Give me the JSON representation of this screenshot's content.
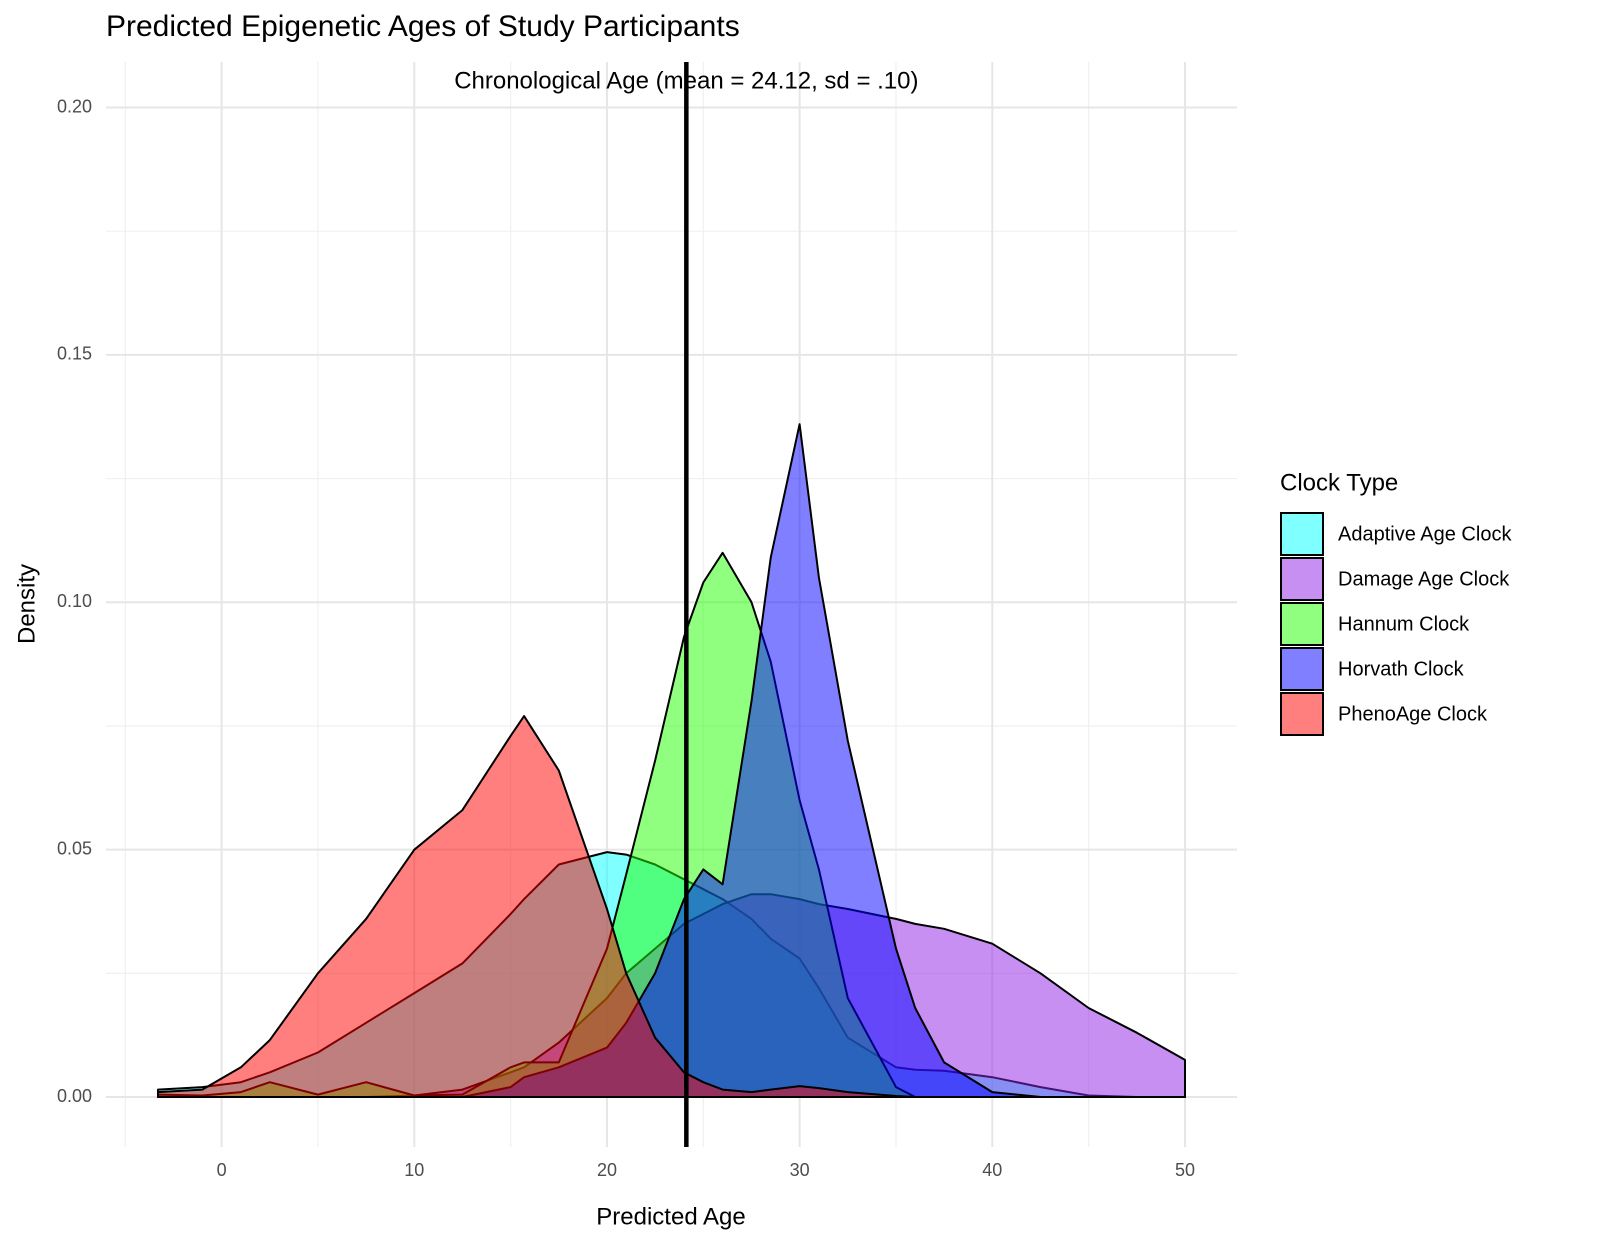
{
  "chart_data": {
    "type": "density",
    "title": "Predicted Epigenetic Ages of Study Participants",
    "xlabel": "Predicted Age",
    "ylabel": "Density",
    "annotation": "Chronological Age (mean = 24.12, sd = .10)",
    "vline": 24.12,
    "legend_title": "Clock Type",
    "legend_position": "right",
    "grid": true,
    "xlim": [
      -6.0,
      52.7
    ],
    "ylim": [
      -0.0101,
      0.2092
    ],
    "xticks": [
      0,
      10,
      20,
      30,
      40,
      50
    ],
    "yticks": [
      {
        "value": 0,
        "label": "0.00"
      },
      {
        "value": 0.05,
        "label": "0.05"
      },
      {
        "value": 0.1,
        "label": "0.10"
      },
      {
        "value": 0.15,
        "label": "0.15"
      },
      {
        "value": 0.2,
        "label": "0.20"
      }
    ],
    "x": [
      -3.3,
      -1,
      1,
      2.5,
      5,
      7.5,
      10,
      12.5,
      15,
      15.7,
      17.5,
      20,
      21,
      22.5,
      24,
      25,
      26,
      27.5,
      28.5,
      30,
      31,
      32.5,
      35,
      36,
      37.5,
      40,
      42.5,
      45,
      47.5,
      50
    ],
    "series": [
      {
        "name": "Adaptive Age Clock",
        "color": "#00ffff",
        "values": [
          0.0015,
          0.002,
          0.003,
          0.005,
          0.009,
          0.015,
          0.021,
          0.027,
          0.037,
          0.04,
          0.047,
          0.0495,
          0.049,
          0.047,
          0.044,
          0.042,
          0.04,
          0.036,
          0.032,
          0.028,
          0.022,
          0.012,
          0.006,
          0.0055,
          0.0053,
          0.004,
          0.002,
          0.0003,
          0,
          0
        ]
      },
      {
        "name": "Damage Age Clock",
        "color": "#8f1fe6",
        "values": [
          0,
          0,
          0,
          0,
          0,
          0,
          0.0003,
          0.0015,
          0.005,
          0.006,
          0.011,
          0.02,
          0.025,
          0.03,
          0.035,
          0.037,
          0.039,
          0.041,
          0.041,
          0.04,
          0.039,
          0.038,
          0.036,
          0.035,
          0.034,
          0.031,
          0.025,
          0.018,
          0.013,
          0.0075
        ]
      },
      {
        "name": "Hannum Clock",
        "color": "#22ff00",
        "values": [
          0.0005,
          0.0003,
          0.001,
          0.003,
          0.0005,
          0.003,
          0.0003,
          0.0005,
          0.006,
          0.007,
          0.007,
          0.03,
          0.045,
          0.068,
          0.093,
          0.104,
          0.11,
          0.1,
          0.088,
          0.06,
          0.046,
          0.02,
          0.002,
          0,
          0,
          0,
          0,
          0,
          0,
          0
        ]
      },
      {
        "name": "Horvath Clock",
        "color": "#0000ff",
        "values": [
          0,
          0,
          0,
          0,
          0,
          0,
          0,
          0,
          0.002,
          0.004,
          0.006,
          0.01,
          0.015,
          0.025,
          0.04,
          0.046,
          0.043,
          0.08,
          0.109,
          0.136,
          0.105,
          0.072,
          0.03,
          0.018,
          0.007,
          0.001,
          0,
          0,
          0,
          0
        ]
      },
      {
        "name": "PhenoAge Clock",
        "color": "#ff0000",
        "values": [
          0.001,
          0.0015,
          0.006,
          0.0115,
          0.025,
          0.036,
          0.05,
          0.058,
          0.073,
          0.077,
          0.066,
          0.038,
          0.025,
          0.012,
          0.005,
          0.003,
          0.0015,
          0.001,
          0.0015,
          0.0022,
          0.0018,
          0.001,
          0.0002,
          0,
          0,
          0,
          0,
          0,
          0,
          0
        ]
      }
    ]
  }
}
